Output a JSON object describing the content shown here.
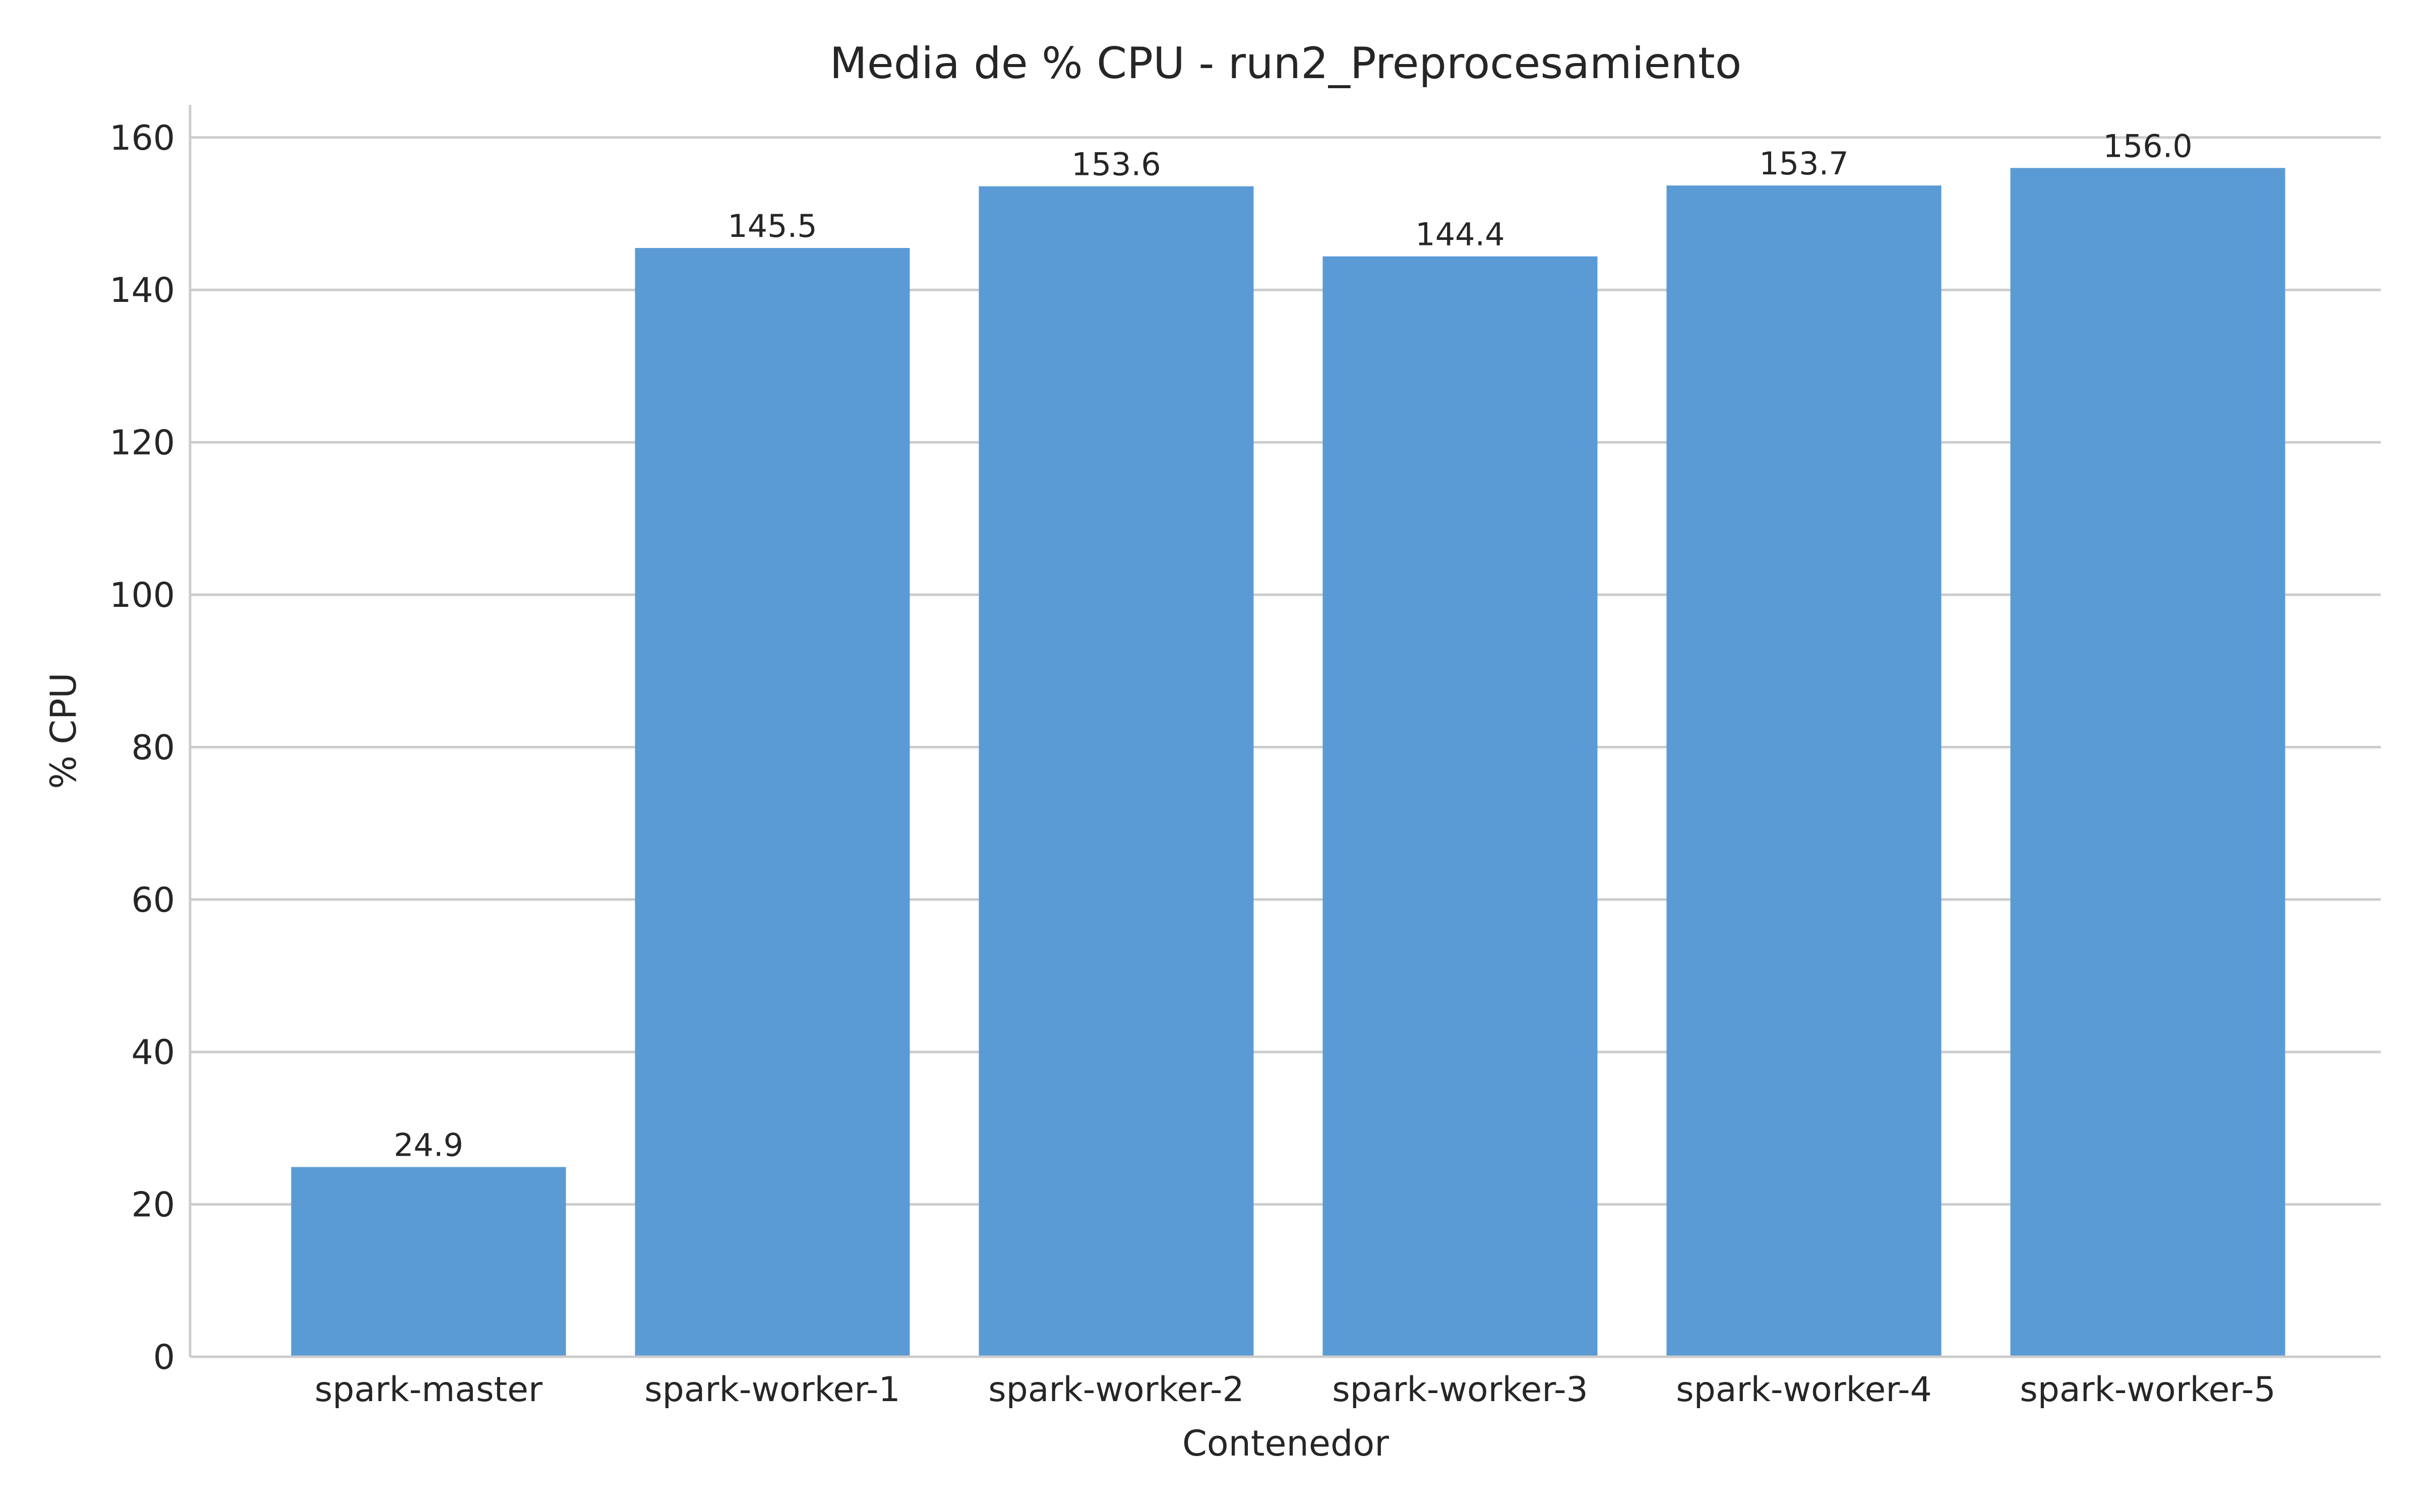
{
  "chart_data": {
    "type": "bar",
    "title": "Media de % CPU - run2_Preprocesamiento",
    "xlabel": "Contenedor",
    "ylabel": "% CPU",
    "categories": [
      "spark-master",
      "spark-worker-1",
      "spark-worker-2",
      "spark-worker-3",
      "spark-worker-4",
      "spark-worker-5"
    ],
    "values": [
      24.9,
      145.5,
      153.6,
      144.4,
      153.7,
      156.0
    ],
    "data_labels": [
      "24.9",
      "145.5",
      "153.6",
      "144.4",
      "153.7",
      "156.0"
    ],
    "ylim": [
      0,
      164
    ],
    "yticks": [
      0,
      20,
      40,
      60,
      80,
      100,
      120,
      140,
      160
    ],
    "grid": "horizontal",
    "bar_color": "#5b9bd5"
  }
}
